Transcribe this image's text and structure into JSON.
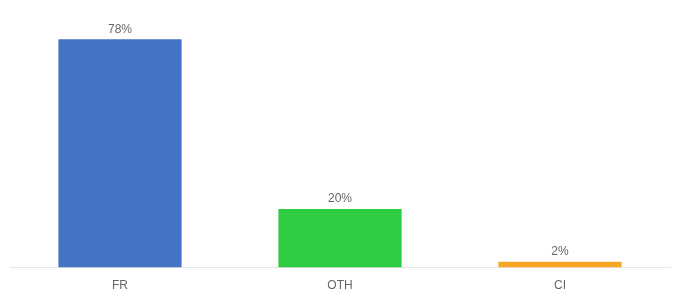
{
  "chart_data": {
    "type": "bar",
    "categories": [
      "FR",
      "OTH",
      "CI"
    ],
    "values": [
      78,
      20,
      2
    ],
    "value_labels": [
      "78%",
      "20%",
      "2%"
    ],
    "colors": [
      "#4472c4",
      "#2ecc40",
      "#f5a623"
    ],
    "ylim": [
      0,
      88
    ],
    "data_labels": true,
    "tick_labels": "x",
    "grid": false
  }
}
